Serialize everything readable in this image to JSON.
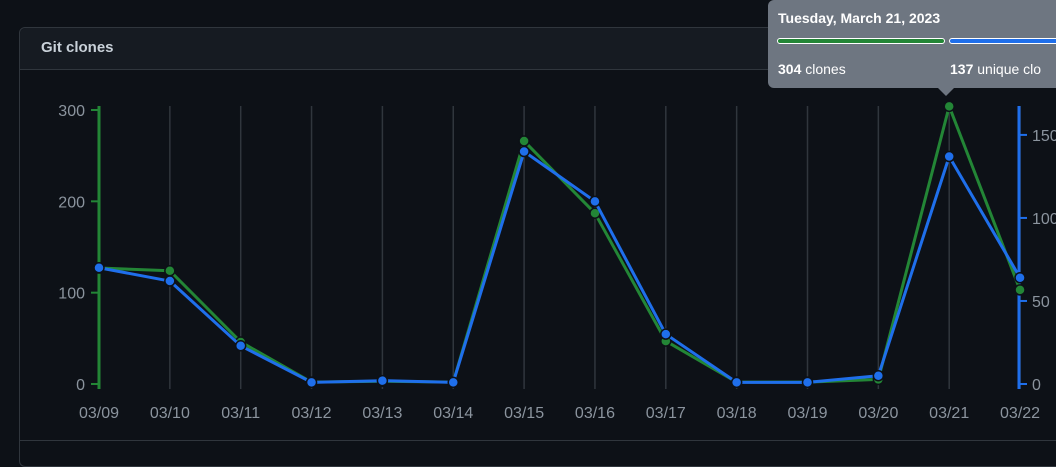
{
  "panel": {
    "title": "Git clones"
  },
  "tooltip": {
    "date": "Tuesday, March 21, 2023",
    "clones_value": "304",
    "clones_label": "clones",
    "unique_value": "137",
    "unique_label": "unique clo"
  },
  "colors": {
    "clones": "#238636",
    "unique": "#1f6feb",
    "grid": "#30363d",
    "tick": "#8b949e",
    "background": "#0d1117"
  },
  "chart_data": {
    "type": "line",
    "categories": [
      "03/09",
      "03/10",
      "03/11",
      "03/12",
      "03/13",
      "03/14",
      "03/15",
      "03/16",
      "03/17",
      "03/18",
      "03/19",
      "03/20",
      "03/21",
      "03/22"
    ],
    "series": [
      {
        "name": "clones",
        "axis": "left",
        "color": "#238636",
        "values": [
          127,
          124,
          46,
          2,
          3,
          2,
          266,
          187,
          47,
          2,
          2,
          5,
          304,
          103
        ]
      },
      {
        "name": "unique clones",
        "axis": "right",
        "color": "#1f6feb",
        "values": [
          70,
          62,
          23,
          1,
          2,
          1,
          140,
          110,
          30,
          1,
          1,
          5,
          137,
          64
        ]
      }
    ],
    "y_left": {
      "ticks": [
        0,
        100,
        200,
        300
      ],
      "ylim": [
        0,
        300
      ]
    },
    "y_right": {
      "ticks": [
        0,
        50,
        100,
        150
      ],
      "ylim": [
        0,
        165
      ]
    },
    "grid": "vertical",
    "highlighted_category": "03/21"
  }
}
